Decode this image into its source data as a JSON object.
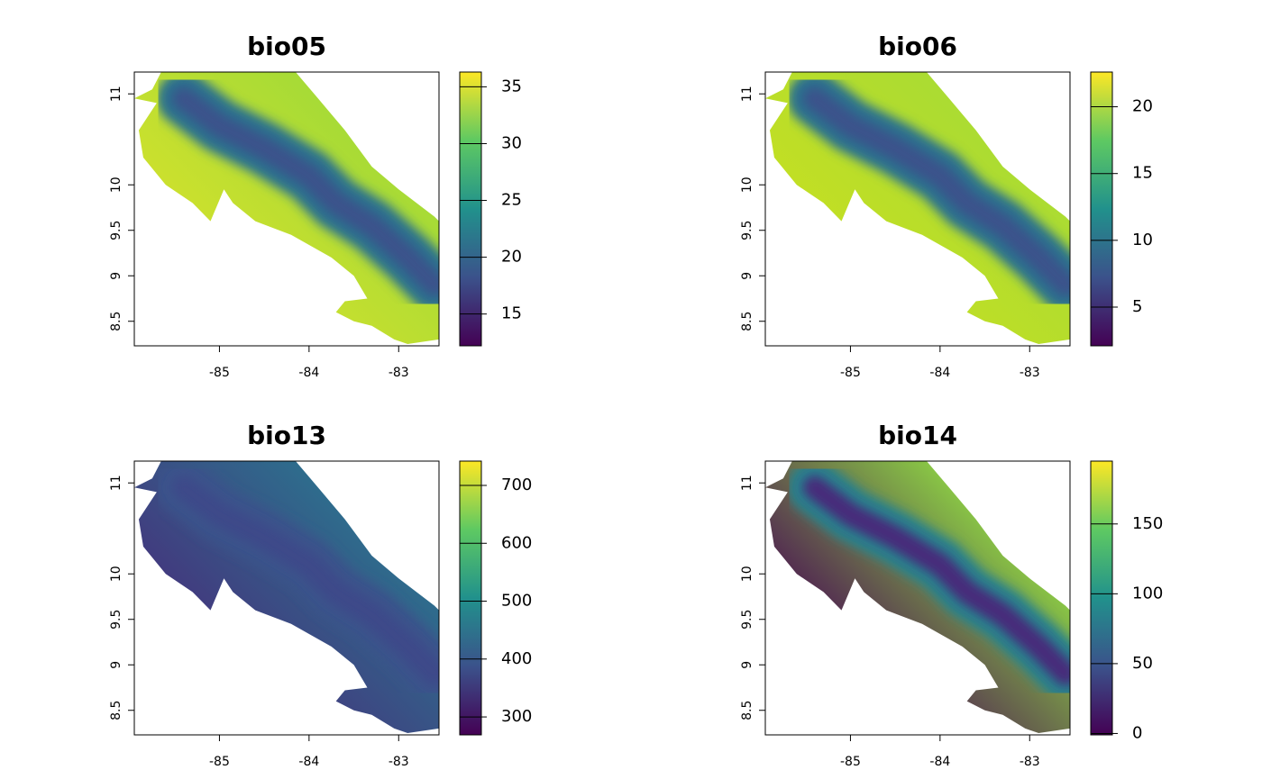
{
  "panels": [
    {
      "title": "bio05",
      "xlim": [
        -85.95,
        -82.55
      ],
      "ylim": [
        8.23,
        11.24
      ],
      "xticks": [
        -85,
        -84,
        -83
      ],
      "yticks": [
        8.5,
        9,
        9.5,
        10,
        11
      ],
      "colorbar": {
        "lim": [
          12.2,
          36.3
        ],
        "ticks": [
          15,
          20,
          25,
          30,
          35
        ]
      }
    },
    {
      "title": "bio06",
      "xlim": [
        -85.95,
        -82.55
      ],
      "ylim": [
        8.23,
        11.24
      ],
      "xticks": [
        -85,
        -84,
        -83
      ],
      "yticks": [
        8.5,
        9,
        9.5,
        10,
        11
      ],
      "colorbar": {
        "lim": [
          2.1,
          22.6
        ],
        "ticks": [
          5,
          10,
          15,
          20
        ]
      }
    },
    {
      "title": "bio13",
      "xlim": [
        -85.95,
        -82.55
      ],
      "ylim": [
        8.23,
        11.24
      ],
      "xticks": [
        -85,
        -84,
        -83
      ],
      "yticks": [
        8.5,
        9,
        9.5,
        10,
        11
      ],
      "colorbar": {
        "lim": [
          269,
          742
        ],
        "ticks": [
          300,
          400,
          500,
          600,
          700
        ]
      }
    },
    {
      "title": "bio14",
      "xlim": [
        -85.95,
        -82.55
      ],
      "ylim": [
        8.23,
        11.24
      ],
      "xticks": [
        -85,
        -84,
        -83
      ],
      "yticks": [
        8.5,
        9,
        9.5,
        10,
        11
      ],
      "colorbar": {
        "lim": [
          -1,
          195
        ],
        "ticks": [
          0,
          50,
          100,
          150
        ]
      }
    }
  ],
  "palette": [
    "#440154",
    "#3b528b",
    "#21918c",
    "#5ec962",
    "#fde725"
  ]
}
